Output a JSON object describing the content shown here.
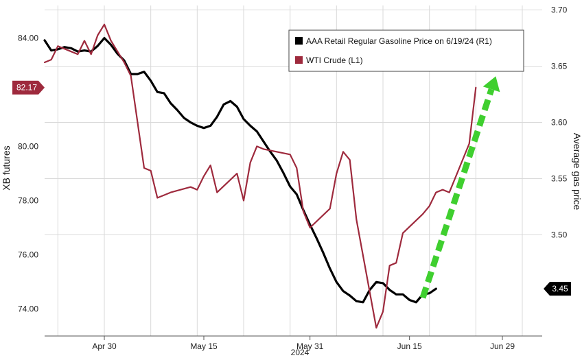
{
  "chart_data": {
    "type": "line",
    "x_axis": {
      "ticks": [
        "Apr 30",
        "May 15",
        "May 31",
        "Jun 15",
        "Jun 29"
      ],
      "tick_dates": [
        "2024-04-30",
        "2024-05-15",
        "2024-05-31",
        "2024-06-15",
        "2024-06-29"
      ],
      "year_label": "2024",
      "range": [
        "2024-04-21",
        "2024-07-05"
      ]
    },
    "y_left": {
      "label": "XB futures",
      "ticks": [
        "84.00",
        "80.00",
        "78.00",
        "76.00",
        "74.00"
      ],
      "tick_values": [
        84,
        80,
        78,
        76,
        74
      ],
      "range": [
        73,
        85.2
      ]
    },
    "y_right": {
      "label": "Average gas price",
      "ticks": [
        "3.70",
        "3.65",
        "3.60",
        "3.55",
        "3.50"
      ],
      "tick_values": [
        3.7,
        3.65,
        3.6,
        3.55,
        3.5
      ],
      "range": [
        3.41,
        3.704
      ]
    },
    "grid": true,
    "legend": {
      "placement": "top-right",
      "entries": [
        "AAA Retail Regular Gasoline Price on 6/19/24 (R1)",
        "WTI Crude (L1)"
      ]
    },
    "series": [
      {
        "name": "AAA Retail Regular Gasoline Price on 6/19/24 (R1)",
        "axis": "right",
        "color": "#000000",
        "last_label": "3.45",
        "x": [
          "2024-04-21",
          "2024-04-22",
          "2024-04-23",
          "2024-04-24",
          "2024-04-25",
          "2024-04-26",
          "2024-04-27",
          "2024-04-28",
          "2024-04-29",
          "2024-04-30",
          "2024-05-01",
          "2024-05-02",
          "2024-05-03",
          "2024-05-04",
          "2024-05-05",
          "2024-05-06",
          "2024-05-07",
          "2024-05-08",
          "2024-05-09",
          "2024-05-10",
          "2024-05-11",
          "2024-05-12",
          "2024-05-13",
          "2024-05-14",
          "2024-05-15",
          "2024-05-16",
          "2024-05-17",
          "2024-05-18",
          "2024-05-19",
          "2024-05-20",
          "2024-05-21",
          "2024-05-22",
          "2024-05-23",
          "2024-05-24",
          "2024-05-25",
          "2024-05-26",
          "2024-05-27",
          "2024-05-28",
          "2024-05-29",
          "2024-05-30",
          "2024-05-31",
          "2024-06-01",
          "2024-06-02",
          "2024-06-03",
          "2024-06-04",
          "2024-06-05",
          "2024-06-06",
          "2024-06-07",
          "2024-06-08",
          "2024-06-09",
          "2024-06-10",
          "2024-06-11",
          "2024-06-12",
          "2024-06-13",
          "2024-06-14",
          "2024-06-15",
          "2024-06-16",
          "2024-06-17",
          "2024-06-18",
          "2024-06-19"
        ],
        "values": [
          3.673,
          3.664,
          3.665,
          3.667,
          3.666,
          3.663,
          3.664,
          3.663,
          3.668,
          3.675,
          3.669,
          3.661,
          3.655,
          3.643,
          3.643,
          3.645,
          3.637,
          3.627,
          3.626,
          3.617,
          3.611,
          3.604,
          3.6,
          3.597,
          3.595,
          3.597,
          3.605,
          3.616,
          3.619,
          3.614,
          3.603,
          3.597,
          3.592,
          3.583,
          3.574,
          3.566,
          3.555,
          3.543,
          3.536,
          3.522,
          3.509,
          3.497,
          3.484,
          3.47,
          3.458,
          3.45,
          3.446,
          3.441,
          3.44,
          3.451,
          3.458,
          3.457,
          3.451,
          3.447,
          3.447,
          3.442,
          3.44,
          3.447,
          3.448,
          3.452
        ]
      },
      {
        "name": "WTI Crude (L1)",
        "axis": "left",
        "color": "#9e2a3d",
        "last_label": "82.17",
        "x": [
          "2024-04-21",
          "2024-04-22",
          "2024-04-23",
          "2024-04-24",
          "2024-04-25",
          "2024-04-26",
          "2024-04-27",
          "2024-04-28",
          "2024-04-29",
          "2024-04-30",
          "2024-05-01",
          "2024-05-02",
          "2024-05-03",
          "2024-05-04",
          "2024-05-06",
          "2024-05-07",
          "2024-05-08",
          "2024-05-09",
          "2024-05-10",
          "2024-05-13",
          "2024-05-14",
          "2024-05-15",
          "2024-05-16",
          "2024-05-17",
          "2024-05-20",
          "2024-05-21",
          "2024-05-22",
          "2024-05-23",
          "2024-05-24",
          "2024-05-28",
          "2024-05-29",
          "2024-05-30",
          "2024-05-31",
          "2024-06-03",
          "2024-06-04",
          "2024-06-05",
          "2024-06-06",
          "2024-06-07",
          "2024-06-10",
          "2024-06-11",
          "2024-06-12",
          "2024-06-13",
          "2024-06-14",
          "2024-06-17",
          "2024-06-18",
          "2024-06-19",
          "2024-06-20",
          "2024-06-21",
          "2024-06-24",
          "2024-06-25"
        ],
        "values": [
          83.1,
          83.2,
          83.7,
          83.6,
          83.5,
          83.4,
          83.9,
          83.4,
          84.1,
          84.5,
          83.9,
          83.5,
          83.1,
          82.6,
          79.2,
          79.1,
          78.1,
          78.2,
          78.3,
          78.5,
          78.4,
          78.9,
          79.3,
          78.3,
          79.0,
          78.0,
          79.4,
          80.0,
          79.9,
          79.7,
          79.2,
          77.6,
          77.0,
          77.7,
          79.0,
          79.8,
          79.5,
          77.3,
          73.3,
          73.9,
          75.6,
          75.7,
          76.8,
          77.5,
          77.8,
          78.3,
          78.4,
          78.3,
          80.1,
          82.17
        ]
      }
    ],
    "annotations": [
      {
        "type": "arrow",
        "style": "dashed",
        "color": "#3fcf2f",
        "from": [
          "2024-06-17",
          3.444
        ],
        "to": [
          "2024-06-28",
          3.641
        ]
      }
    ]
  }
}
